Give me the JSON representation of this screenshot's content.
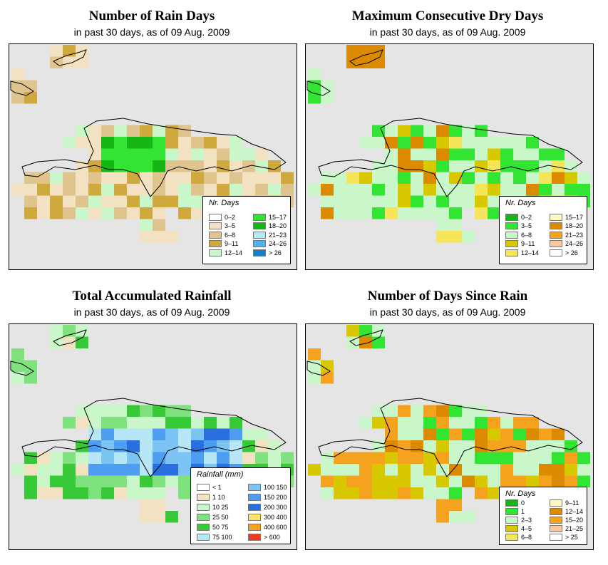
{
  "panels": [
    {
      "title": "Number of Rain Days",
      "subtitle": "in past 30 days, as of  09 Aug. 2009",
      "legend": {
        "title": "Nr. Days",
        "items": [
          {
            "label": "0–2",
            "color": "#ffffff"
          },
          {
            "label": "3–5",
            "color": "#f3e2c2"
          },
          {
            "label": "6–8",
            "color": "#e0c48e"
          },
          {
            "label": "9–11",
            "color": "#cfa83e"
          },
          {
            "label": "12–14",
            "color": "#c9f7c9"
          },
          {
            "label": "15–17",
            "color": "#33e533"
          },
          {
            "label": "18–20",
            "color": "#15b515"
          },
          {
            "label": "21–23",
            "color": "#b7e6f7"
          },
          {
            "label": "24–26",
            "color": "#4eb2ee"
          },
          {
            "label": "> 26",
            "color": "#1380c8"
          }
        ]
      }
    },
    {
      "title": "Maximum Consecutive Dry Days",
      "subtitle": "in past 30 days, as of  09 Aug. 2009",
      "legend": {
        "title": "Nr. Days",
        "items": [
          {
            "label": "0–2",
            "color": "#15b515"
          },
          {
            "label": "3–5",
            "color": "#33e533"
          },
          {
            "label": "6–8",
            "color": "#c9f7c9"
          },
          {
            "label": "9–11",
            "color": "#d8c800"
          },
          {
            "label": "12–14",
            "color": "#f6e45a"
          },
          {
            "label": "15–17",
            "color": "#fff8c0"
          },
          {
            "label": "18–20",
            "color": "#dc8a00"
          },
          {
            "label": "21–23",
            "color": "#f5a21f"
          },
          {
            "label": "24–26",
            "color": "#f8c89b"
          },
          {
            "label": "> 26",
            "color": "#ffffff"
          }
        ]
      }
    },
    {
      "title": "Total Accumulated Rainfall",
      "subtitle": "in past 30 days, as of  09 Aug. 2009",
      "legend": {
        "title": "Rainfall (mm)",
        "items": [
          {
            "label": "< 1",
            "color": "#ffffff"
          },
          {
            "label": "1     10",
            "color": "#f3e2c2"
          },
          {
            "label": "10     25",
            "color": "#c9f7c9"
          },
          {
            "label": "25     50",
            "color": "#7fe27f"
          },
          {
            "label": "50     75",
            "color": "#37c937"
          },
          {
            "label": "75    100",
            "color": "#b7e6f7"
          },
          {
            "label": "100    150",
            "color": "#7cc4f4"
          },
          {
            "label": "150    200",
            "color": "#4d9df0"
          },
          {
            "label": "200    300",
            "color": "#2a6fe0"
          },
          {
            "label": "300    400",
            "color": "#ffe36b"
          },
          {
            "label": "400    600",
            "color": "#f5a21f"
          },
          {
            "label": "> 600",
            "color": "#f03a1a"
          }
        ]
      }
    },
    {
      "title": "Number of Days Since Rain",
      "subtitle": "in past 30 days, as of  09 Aug. 2009",
      "legend": {
        "title": "Nr. Days",
        "items": [
          {
            "label": "0",
            "color": "#15b515"
          },
          {
            "label": "1",
            "color": "#33e533"
          },
          {
            "label": "2–3",
            "color": "#c9f7c9"
          },
          {
            "label": "4–5",
            "color": "#d8c800"
          },
          {
            "label": "6–8",
            "color": "#f6e45a"
          },
          {
            "label": "9–11",
            "color": "#fff8c0"
          },
          {
            "label": "12–14",
            "color": "#dc8a00"
          },
          {
            "label": "15–20",
            "color": "#f5a21f"
          },
          {
            "label": "21–25",
            "color": "#f8c89b"
          },
          {
            "label": "> 25",
            "color": "#ffffff"
          }
        ]
      }
    }
  ]
}
